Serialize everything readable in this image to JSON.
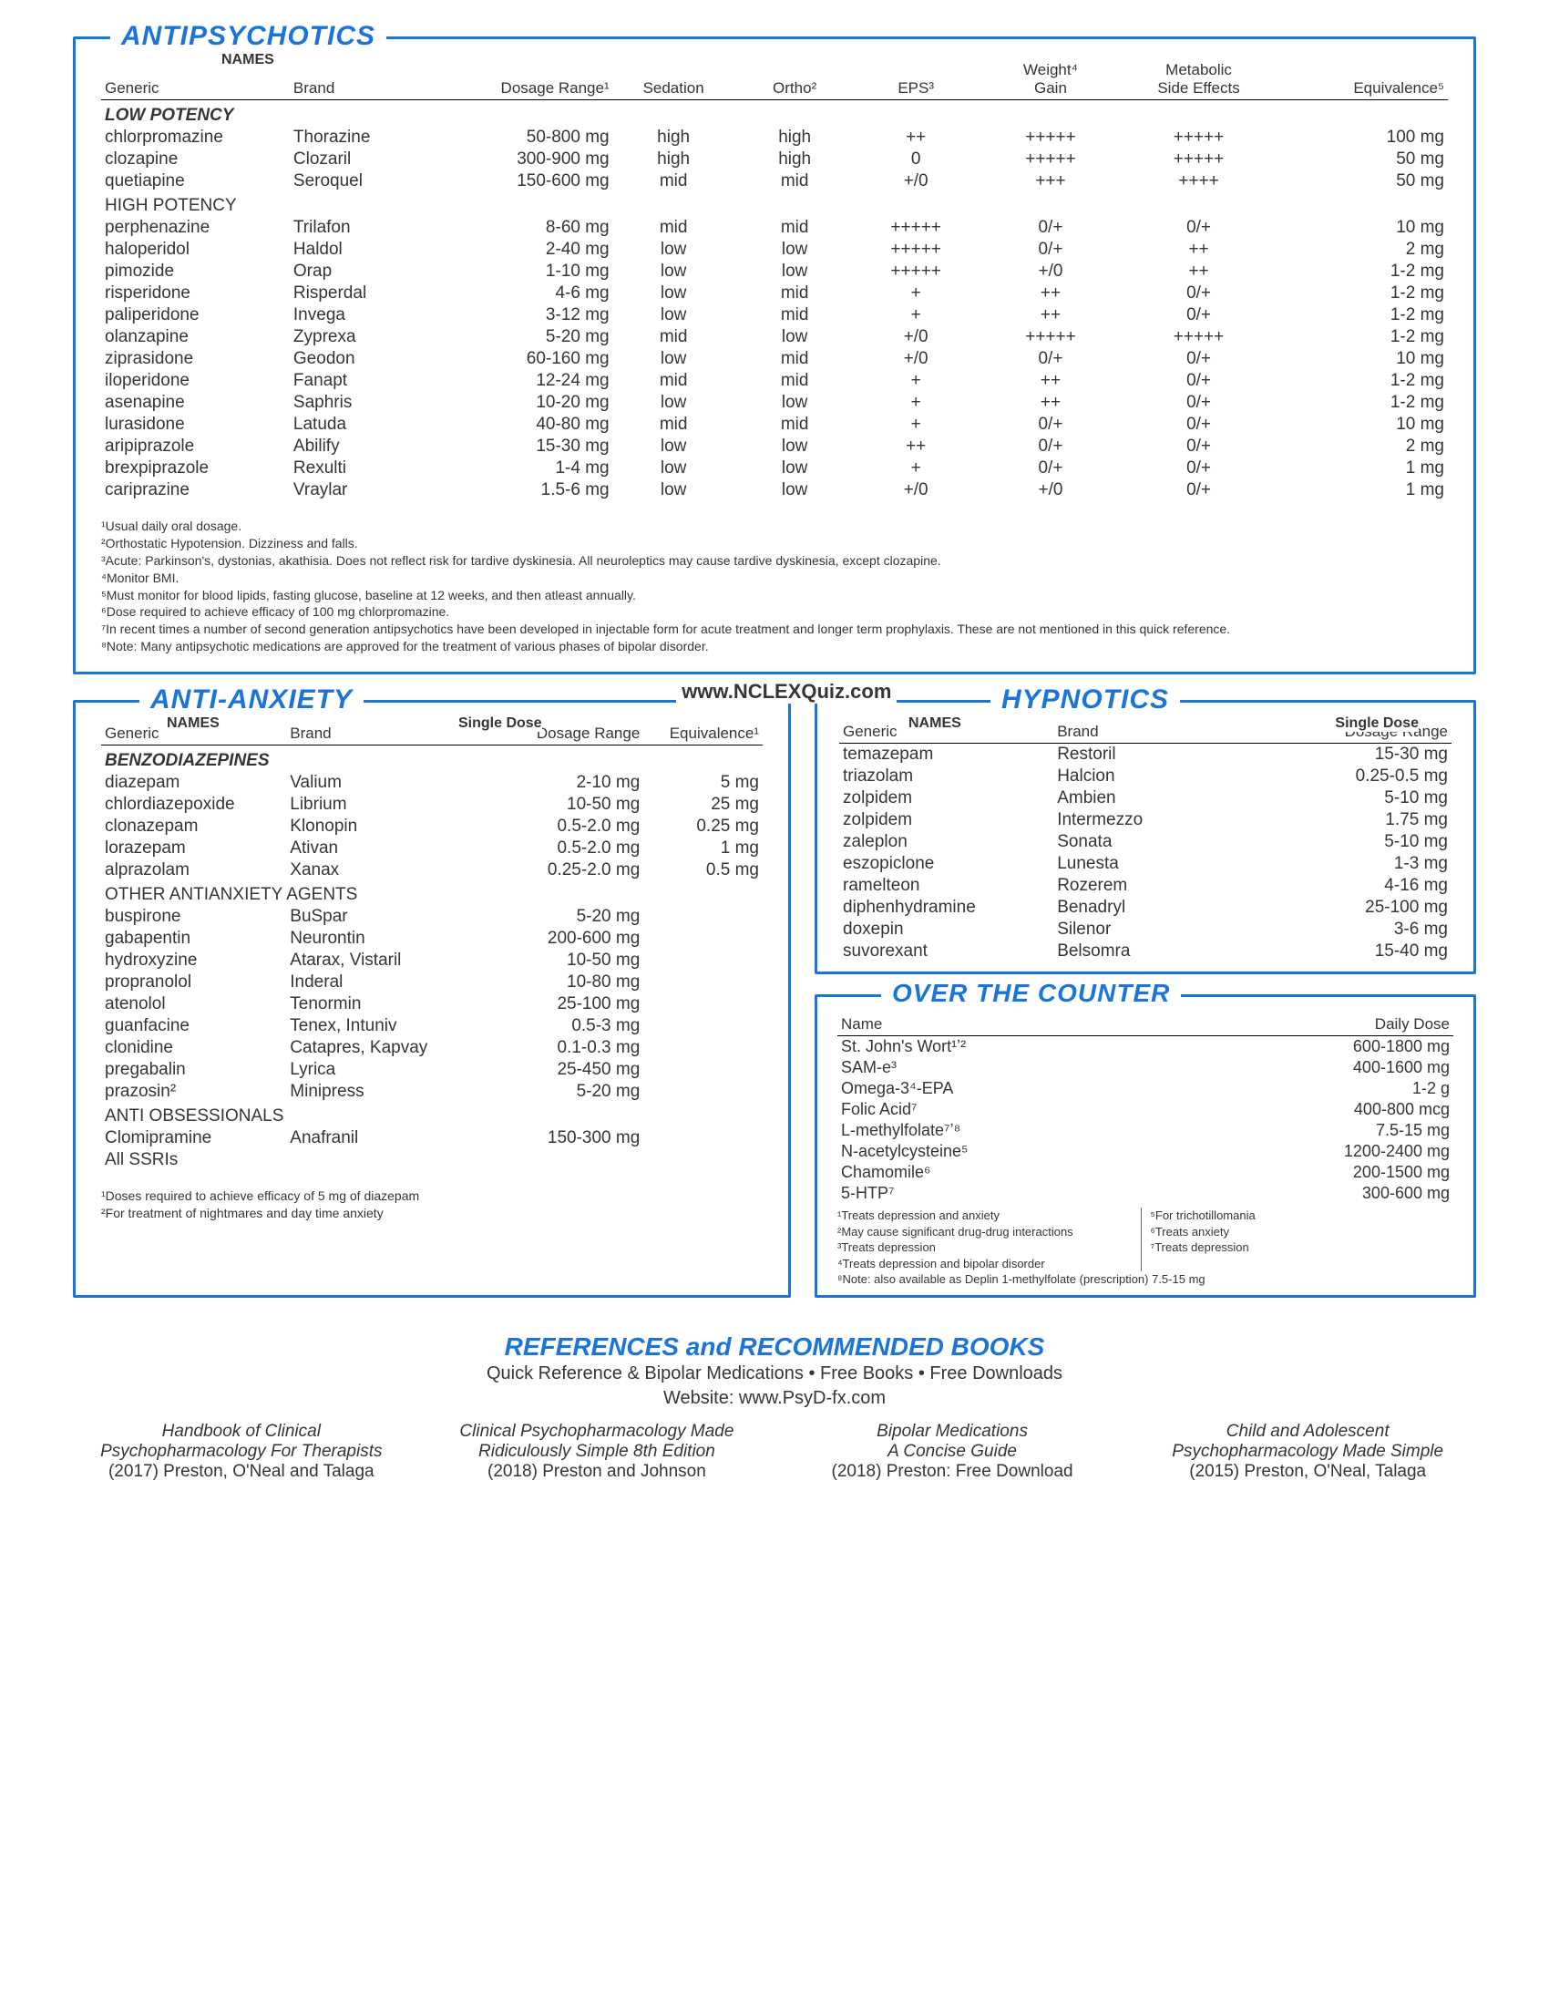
{
  "colors": {
    "accent": "#1b74d8",
    "text": "#353535",
    "bg": "#ffffff",
    "rule": "#000000"
  },
  "watermark": "www.NCLEXQuiz.com",
  "antipsychotics": {
    "title": "ANTIPSYCHOTICS",
    "names_label": "NAMES",
    "columns": [
      "Generic",
      "Brand",
      "Dosage Range¹",
      "Sedation",
      "Ortho²",
      "EPS³",
      "Weight⁴\nGain",
      "Metabolic\nSide Effects",
      "Equivalence⁵"
    ],
    "groups": [
      {
        "label": "LOW POTENCY",
        "style": "italic",
        "rows": [
          [
            "chlorpromazine",
            "Thorazine",
            "50-800 mg",
            "high",
            "high",
            "++",
            "+++++",
            "+++++",
            "100 mg"
          ],
          [
            "clozapine",
            "Clozaril",
            "300-900 mg",
            "high",
            "high",
            "0",
            "+++++",
            "+++++",
            "50 mg"
          ],
          [
            "quetiapine",
            "Seroquel",
            "150-600 mg",
            "mid",
            "mid",
            "+/0",
            "+++",
            "++++",
            "50 mg"
          ]
        ]
      },
      {
        "label": "HIGH POTENCY",
        "style": "plain",
        "rows": [
          [
            "perphenazine",
            "Trilafon",
            "8-60  mg",
            "mid",
            "mid",
            "+++++",
            "0/+",
            "0/+",
            "10 mg"
          ],
          [
            "haloperidol",
            "Haldol",
            "2-40  mg",
            "low",
            "low",
            "+++++",
            "0/+",
            "++",
            "2 mg"
          ],
          [
            "pimozide",
            "Orap",
            "1-10  mg",
            "low",
            "low",
            "+++++",
            "+/0",
            "++",
            "1-2 mg"
          ],
          [
            "risperidone",
            "Risperdal",
            "4-6  mg",
            "low",
            "mid",
            "+",
            "++",
            "0/+",
            "1-2 mg"
          ],
          [
            "paliperidone",
            "Invega",
            "3-12  mg",
            "low",
            "mid",
            "+",
            "++",
            "0/+",
            "1-2 mg"
          ],
          [
            "olanzapine",
            "Zyprexa",
            "5-20 mg",
            "mid",
            "low",
            "+/0",
            "+++++",
            "+++++",
            "1-2 mg"
          ],
          [
            "ziprasidone",
            "Geodon",
            "60-160 mg",
            "low",
            "mid",
            "+/0",
            "0/+",
            "0/+",
            "10 mg"
          ],
          [
            "iloperidone",
            "Fanapt",
            "12-24  mg",
            "mid",
            "mid",
            "+",
            "++",
            "0/+",
            "1-2 mg"
          ],
          [
            "asenapine",
            "Saphris",
            "10-20  mg",
            "low",
            "low",
            "+",
            "++",
            "0/+",
            "1-2 mg"
          ],
          [
            "lurasidone",
            "Latuda",
            "40-80  mg",
            "mid",
            "mid",
            "+",
            "0/+",
            "0/+",
            "10 mg"
          ],
          [
            "aripiprazole",
            "Abilify",
            "15-30  mg",
            "low",
            "low",
            "++",
            "0/+",
            "0/+",
            "2 mg"
          ],
          [
            "brexpiprazole",
            "Rexulti",
            "1-4    mg",
            "low",
            "low",
            "+",
            "0/+",
            "0/+",
            "1 mg"
          ],
          [
            "cariprazine",
            "Vraylar",
            "1.5-6 mg",
            "low",
            "low",
            "+/0",
            "+/0",
            "0/+",
            "1 mg"
          ]
        ]
      }
    ],
    "footnotes": [
      "¹Usual daily oral dosage.",
      "²Orthostatic Hypotension. Dizziness and falls.",
      "³Acute: Parkinson's, dystonias, akathisia. Does not reflect risk for tardive dyskinesia.  All neuroleptics may cause tardive dyskinesia, except clozapine.",
      "⁴Monitor BMI.",
      "⁵Must monitor for blood lipids, fasting glucose, baseline at 12 weeks, and then atleast annually.",
      "⁶Dose required to achieve efficacy of 100 mg chlorpromazine.",
      "⁷In recent times a number of second generation antipsychotics have been developed in injectable form for acute treatment and longer term prophylaxis. These are not mentioned in this quick reference.",
      "⁸Note: Many antipsychotic medications are approved for the treatment of various phases of bipolar disorder."
    ]
  },
  "antianxiety": {
    "title": "ANTI-ANXIETY",
    "names_label": "NAMES",
    "dose_label": "Single Dose",
    "columns": [
      "Generic",
      "Brand",
      "Dosage Range",
      "Equivalence¹"
    ],
    "groups": [
      {
        "label": "BENZODIAZEPINES",
        "style": "italic",
        "rows": [
          [
            "diazepam",
            "Valium",
            "2-10 mg",
            "5 mg"
          ],
          [
            "chlordiazepoxide",
            "Librium",
            "10-50 mg",
            "25 mg"
          ],
          [
            "clonazepam",
            "Klonopin",
            "0.5-2.0 mg",
            "0.25 mg"
          ],
          [
            "lorazepam",
            "Ativan",
            "0.5-2.0 mg",
            "1 mg"
          ],
          [
            "alprazolam",
            "Xanax",
            "0.25-2.0 mg",
            "0.5 mg"
          ]
        ]
      },
      {
        "label": "OTHER ANTIANXIETY AGENTS",
        "style": "plain",
        "rows": [
          [
            "buspirone",
            "BuSpar",
            "5-20 mg",
            ""
          ],
          [
            "gabapentin",
            "Neurontin",
            "200-600 mg",
            ""
          ],
          [
            "hydroxyzine",
            "Atarax, Vistaril",
            "10-50 mg",
            ""
          ],
          [
            "propranolol",
            "Inderal",
            "10-80 mg",
            ""
          ],
          [
            "atenolol",
            "Tenormin",
            "25-100 mg",
            ""
          ],
          [
            "guanfacine",
            "Tenex, Intuniv",
            "0.5-3 mg",
            ""
          ],
          [
            "clonidine",
            "Catapres, Kapvay",
            "0.1-0.3 mg",
            ""
          ],
          [
            "pregabalin",
            "Lyrica",
            "25-450 mg",
            ""
          ],
          [
            "prazosin²",
            "Minipress",
            "5-20 mg",
            ""
          ]
        ]
      },
      {
        "label": "ANTI OBSESSIONALS",
        "style": "plain",
        "rows": [
          [
            "Clomipramine",
            "Anafranil",
            "150-300 mg",
            ""
          ],
          [
            "All SSRIs",
            "",
            "",
            ""
          ]
        ]
      }
    ],
    "footnotes": [
      "¹Doses required to achieve efficacy of 5 mg of diazepam",
      "²For treatment of nightmares and day time anxiety"
    ]
  },
  "hypnotics": {
    "title": "HYPNOTICS",
    "names_label": "NAMES",
    "dose_label": "Single Dose",
    "columns": [
      "Generic",
      "Brand",
      "Dosage Range"
    ],
    "rows": [
      [
        "temazepam",
        "Restoril",
        "15-30 mg"
      ],
      [
        "triazolam",
        "Halcion",
        "0.25-0.5 mg"
      ],
      [
        "zolpidem",
        "Ambien",
        "5-10 mg"
      ],
      [
        "zolpidem",
        "Intermezzo",
        "1.75 mg"
      ],
      [
        "zaleplon",
        "Sonata",
        "5-10 mg"
      ],
      [
        "eszopiclone",
        "Lunesta",
        "1-3 mg"
      ],
      [
        "ramelteon",
        "Rozerem",
        "4-16 mg"
      ],
      [
        "diphenhydramine",
        "Benadryl",
        "25-100 mg"
      ],
      [
        "doxepin",
        "Silenor",
        "3-6 mg"
      ],
      [
        "suvorexant",
        "Belsomra",
        "15-40 mg"
      ]
    ]
  },
  "otc": {
    "title": "OVER THE COUNTER",
    "columns": [
      "Name",
      "Daily Dose"
    ],
    "rows": [
      [
        "St. John's Wort¹ʼ²",
        "600-1800 mg"
      ],
      [
        "SAM-e³",
        "400-1600 mg"
      ],
      [
        "Omega-3⁴-EPA",
        "1-2 g"
      ],
      [
        "Folic Acid⁷",
        "400-800 mcg"
      ],
      [
        "L-methylfolate⁷ʼ⁸",
        "7.5-15 mg"
      ],
      [
        "N-acetylcysteine⁵",
        "1200-2400 mg"
      ],
      [
        "Chamomile⁶",
        "200-1500 mg"
      ],
      [
        "5-HTP⁷",
        "300-600 mg"
      ]
    ],
    "footnotes_left": [
      "¹Treats depression and anxiety",
      "²May cause significant drug-drug interactions",
      "³Treats depression",
      "⁴Treats depression and bipolar disorder"
    ],
    "footnotes_right": [
      "⁵For trichotillomania",
      "⁶Treats anxiety",
      "⁷Treats depression"
    ],
    "footnote_bottom": "⁸Note: also available as Deplin 1-methylfolate (prescription) 7.5-15 mg"
  },
  "references": {
    "title": "REFERENCES and RECOMMENDED BOOKS",
    "subtitle": "Quick Reference & Bipolar Medications • Free Books • Free Downloads",
    "website": "Website: www.PsyD-fx.com",
    "books": [
      {
        "t1": "Handbook of Clinical",
        "t2": "Psychopharmacology For Therapists",
        "t3": "(2017) Preston, O'Neal and Talaga"
      },
      {
        "t1": "Clinical Psychopharmacology Made",
        "t2": "Ridiculously Simple 8th Edition",
        "t3": "(2018) Preston and Johnson"
      },
      {
        "t1": "Bipolar Medications",
        "t2": "A Concise Guide",
        "t3": "(2018) Preston: Free Download"
      },
      {
        "t1": "Child and Adolescent",
        "t2": "Psychopharmacology Made Simple",
        "t3": "(2015)  Preston, O'Neal, Talaga"
      }
    ]
  }
}
